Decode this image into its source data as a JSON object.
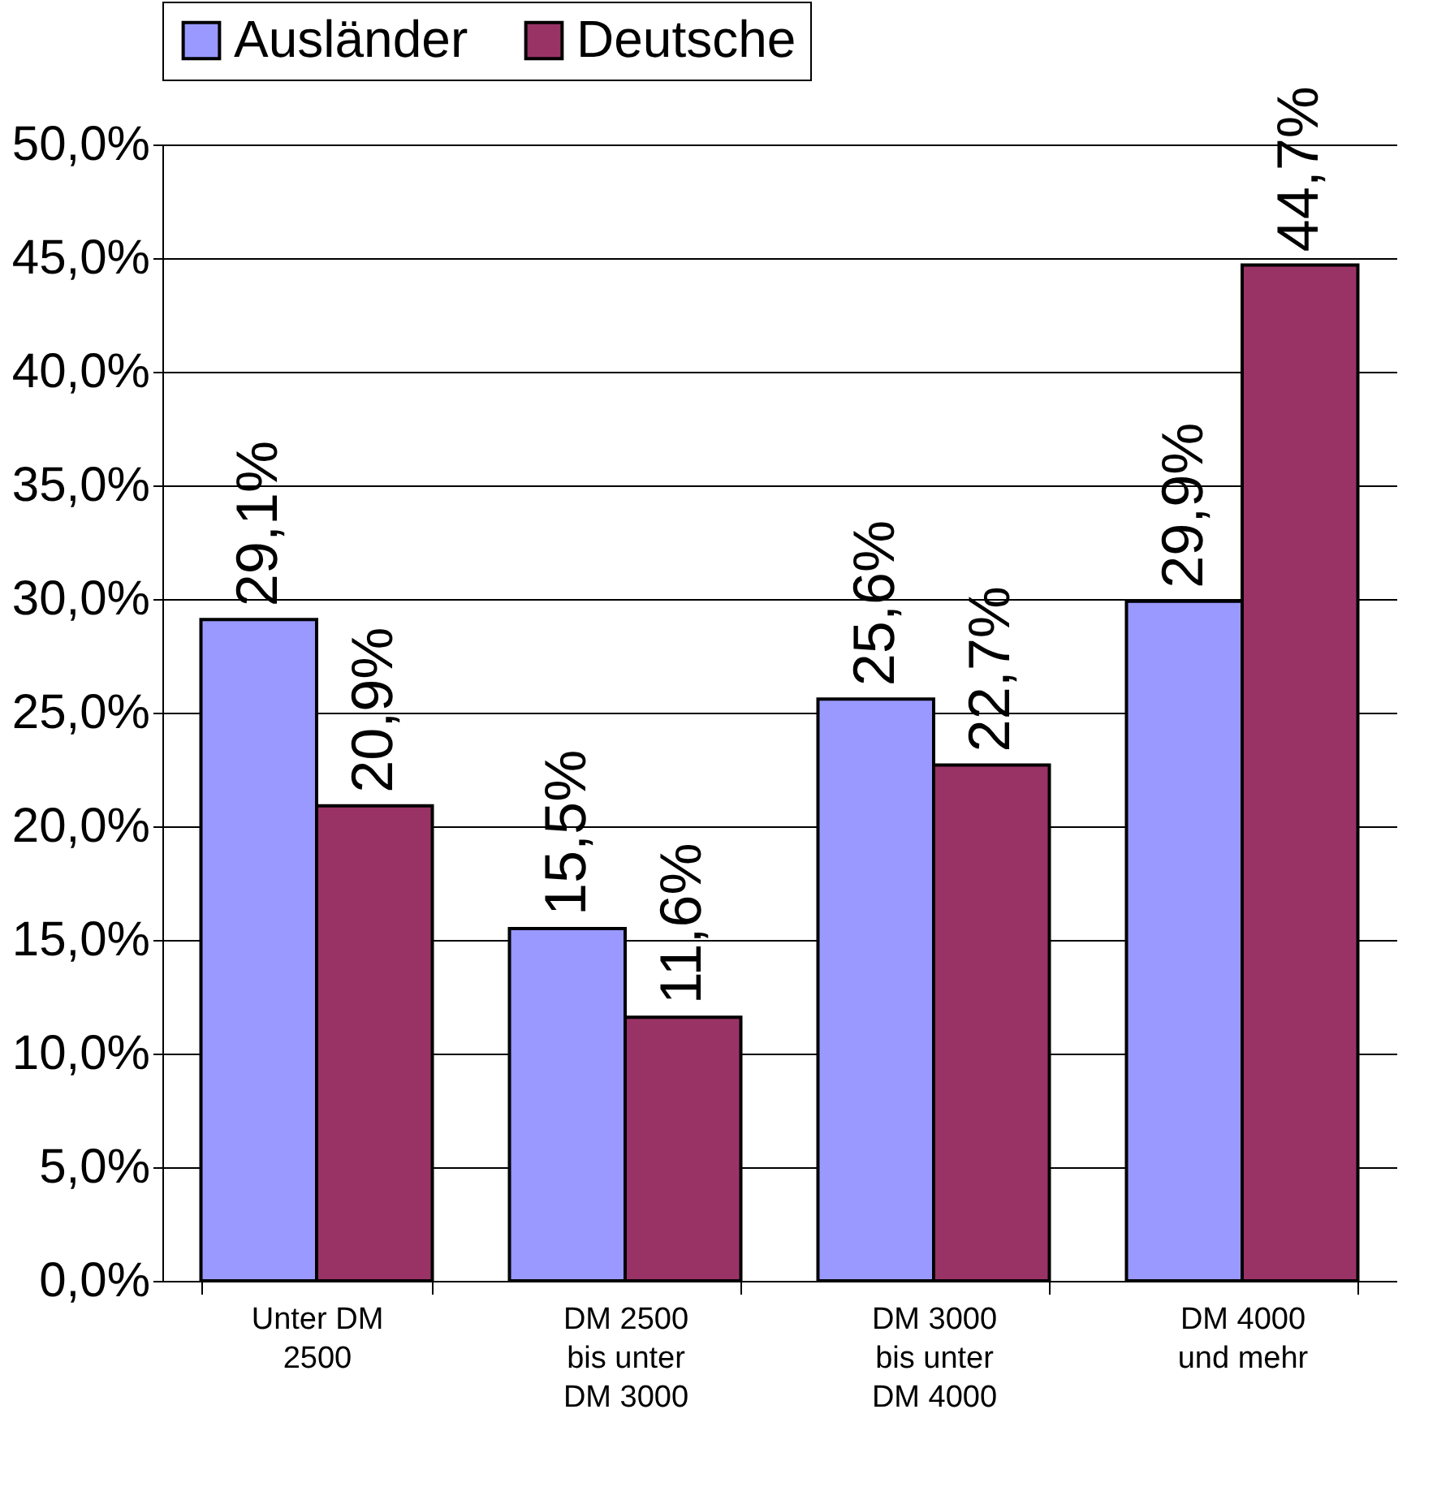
{
  "chart_data": {
    "type": "bar",
    "categories": [
      "Unter DM 2500",
      "DM 2500 bis unter DM 3000",
      "DM 3000 bis unter DM 4000",
      "DM 4000 und mehr"
    ],
    "series": [
      {
        "name": "Ausländer",
        "color": "#9999ff",
        "values": [
          29.1,
          15.5,
          25.6,
          29.9
        ],
        "value_labels": [
          "29,1%",
          "15,5%",
          "25,6%",
          "29,9%"
        ]
      },
      {
        "name": "Deutsche",
        "color": "#993366",
        "values": [
          20.9,
          11.6,
          22.7,
          44.7
        ],
        "value_labels": [
          "20,9%",
          "11,6%",
          "22,7%",
          "44,7%"
        ]
      }
    ],
    "ylim": [
      0,
      50
    ],
    "yticks": [
      {
        "value": 0,
        "label": "0,0%"
      },
      {
        "value": 5,
        "label": "5,0%"
      },
      {
        "value": 10,
        "label": "10,0%"
      },
      {
        "value": 15,
        "label": "15,0%"
      },
      {
        "value": 20,
        "label": "20,0%"
      },
      {
        "value": 25,
        "label": "25,0%"
      },
      {
        "value": 30,
        "label": "30,0%"
      },
      {
        "value": 35,
        "label": "35,0%"
      },
      {
        "value": 40,
        "label": "40,0%"
      },
      {
        "value": 45,
        "label": "45,0%"
      },
      {
        "value": 50,
        "label": "50,0%"
      }
    ],
    "grid": "y",
    "legend": "top"
  }
}
